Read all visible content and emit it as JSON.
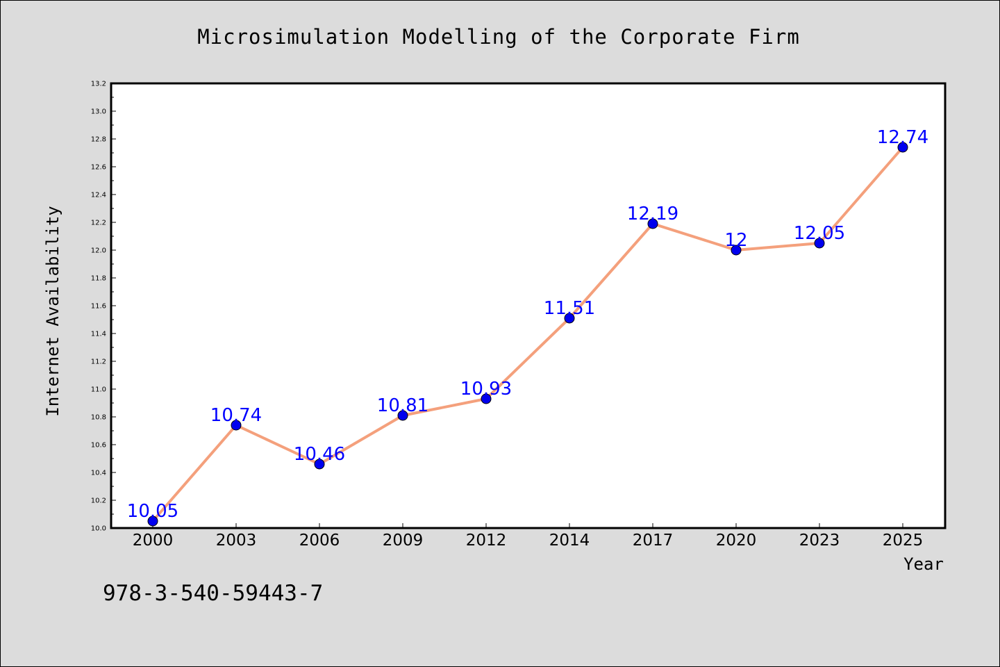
{
  "chart_data": {
    "type": "line",
    "title": "Microsimulation Modelling of the Corporate Firm",
    "xlabel": "Year",
    "ylabel": "Internet Availability",
    "categories": [
      "2000",
      "2003",
      "2006",
      "2009",
      "2012",
      "2014",
      "2017",
      "2020",
      "2023",
      "2025"
    ],
    "series": [
      {
        "values": [
          10.05,
          10.74,
          10.46,
          10.81,
          10.93,
          11.51,
          12.19,
          12,
          12.05,
          12.74
        ],
        "labels": [
          "10.05",
          "10.74",
          "10.46",
          "10.81",
          "10.93",
          "11.51",
          "12.19",
          "12",
          "12.05",
          "12.74"
        ],
        "line_color": "#f4a07c",
        "marker_color": "#0000ee"
      }
    ],
    "ylim": [
      10.0,
      13.2
    ],
    "yticks": [
      "10.0",
      "10.2",
      "10.4",
      "10.6",
      "10.8",
      "11.0",
      "11.2",
      "11.4",
      "11.6",
      "11.8",
      "12.0",
      "12.2",
      "12.4",
      "12.6",
      "12.8",
      "13.0",
      "13.2"
    ],
    "grid": false,
    "legend": "none"
  },
  "footnote": "978-3-540-59443-7",
  "colors": {
    "background": "#dcdcdc",
    "plot_background": "#ffffff",
    "data_label": "#0000ff"
  }
}
